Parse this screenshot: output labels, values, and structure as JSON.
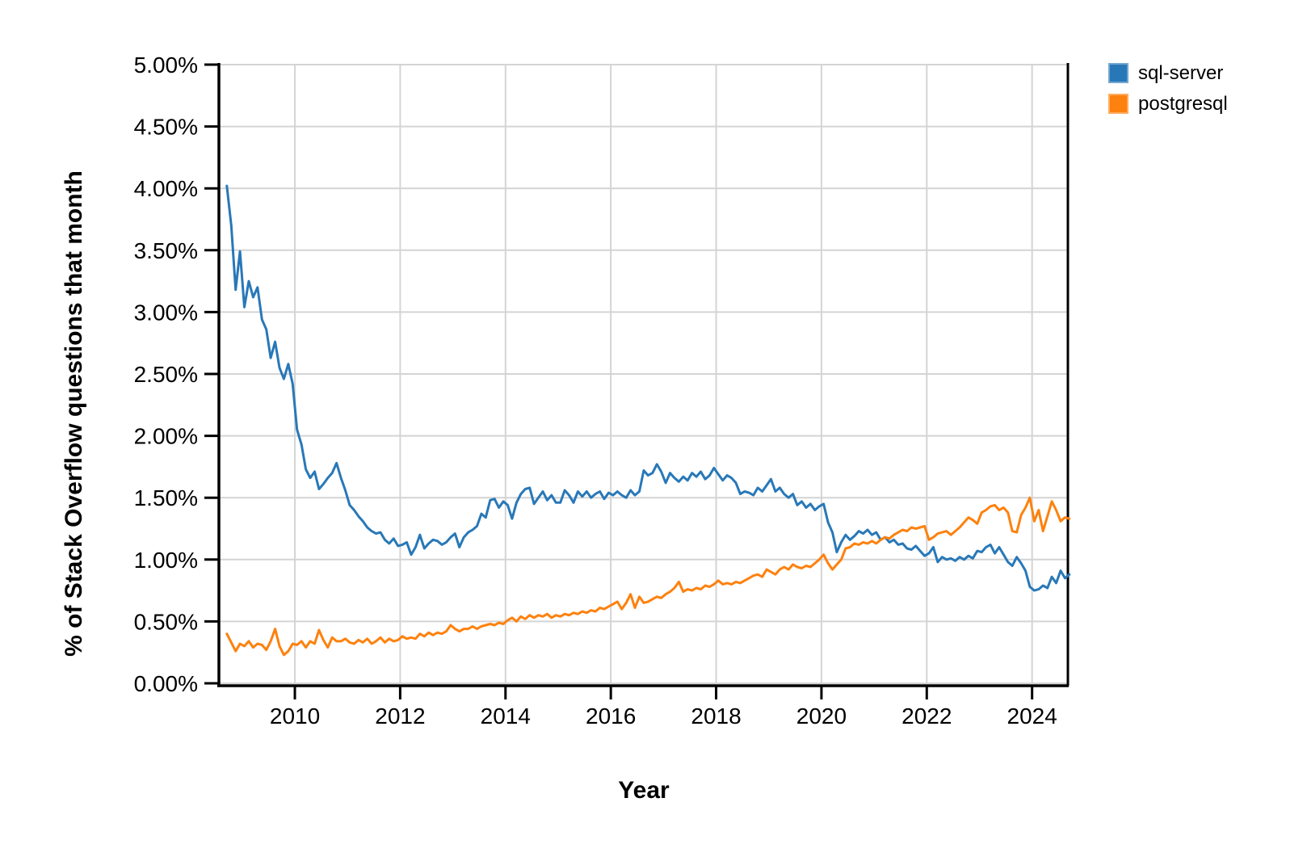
{
  "chart_data": {
    "type": "line",
    "title": "",
    "xlabel": "Year",
    "ylabel": "% of Stack Overflow questions that month",
    "grid": true,
    "legend_position": "top-right",
    "x_axis": {
      "range": [
        2008.573,
        2024.68
      ],
      "tick_years": [
        2010,
        2012,
        2014,
        2016,
        2018,
        2020,
        2022,
        2024
      ],
      "tick_labels": [
        "2010",
        "2012",
        "2014",
        "2016",
        "2018",
        "2020",
        "2022",
        "2024"
      ],
      "series_start_year": 2008.7083,
      "series_step_years": 0.083333
    },
    "y_axis": {
      "range": [
        0,
        5
      ],
      "tick_values": [
        0,
        0.5,
        1,
        1.5,
        2,
        2.5,
        3,
        3.5,
        4,
        4.5,
        5
      ],
      "tick_labels": [
        "0.00%",
        "0.50%",
        "1.00%",
        "1.50%",
        "2.00%",
        "2.50%",
        "3.00%",
        "3.50%",
        "4.00%",
        "4.50%",
        "5.00%"
      ]
    },
    "series": [
      {
        "name": "sql-server",
        "color": "#2878b8",
        "unit": "percent of Stack Overflow questions",
        "values": [
          4.02,
          3.7,
          3.18,
          3.49,
          3.04,
          3.25,
          3.12,
          3.2,
          2.94,
          2.86,
          2.63,
          2.76,
          2.55,
          2.46,
          2.58,
          2.42,
          2.05,
          1.93,
          1.73,
          1.66,
          1.71,
          1.57,
          1.61,
          1.66,
          1.7,
          1.78,
          1.66,
          1.56,
          1.44,
          1.4,
          1.35,
          1.31,
          1.26,
          1.23,
          1.21,
          1.22,
          1.16,
          1.13,
          1.17,
          1.11,
          1.12,
          1.14,
          1.04,
          1.1,
          1.2,
          1.09,
          1.13,
          1.16,
          1.15,
          1.12,
          1.14,
          1.18,
          1.21,
          1.1,
          1.18,
          1.22,
          1.24,
          1.27,
          1.37,
          1.34,
          1.48,
          1.49,
          1.42,
          1.47,
          1.44,
          1.33,
          1.46,
          1.53,
          1.57,
          1.58,
          1.45,
          1.5,
          1.55,
          1.48,
          1.52,
          1.46,
          1.46,
          1.56,
          1.52,
          1.46,
          1.55,
          1.51,
          1.55,
          1.5,
          1.53,
          1.55,
          1.49,
          1.54,
          1.52,
          1.55,
          1.52,
          1.5,
          1.56,
          1.52,
          1.55,
          1.72,
          1.68,
          1.7,
          1.77,
          1.71,
          1.62,
          1.7,
          1.66,
          1.63,
          1.67,
          1.64,
          1.7,
          1.67,
          1.71,
          1.65,
          1.68,
          1.74,
          1.69,
          1.64,
          1.68,
          1.66,
          1.62,
          1.53,
          1.55,
          1.54,
          1.52,
          1.58,
          1.55,
          1.6,
          1.65,
          1.55,
          1.58,
          1.53,
          1.5,
          1.53,
          1.44,
          1.47,
          1.42,
          1.45,
          1.4,
          1.43,
          1.45,
          1.3,
          1.22,
          1.06,
          1.14,
          1.2,
          1.16,
          1.19,
          1.23,
          1.21,
          1.24,
          1.2,
          1.22,
          1.16,
          1.18,
          1.14,
          1.16,
          1.12,
          1.13,
          1.09,
          1.08,
          1.11,
          1.07,
          1.03,
          1.05,
          1.1,
          0.98,
          1.02,
          1.0,
          1.01,
          0.99,
          1.02,
          1.0,
          1.03,
          1.01,
          1.07,
          1.06,
          1.1,
          1.12,
          1.05,
          1.1,
          1.04,
          0.98,
          0.95,
          1.02,
          0.97,
          0.91,
          0.78,
          0.75,
          0.76,
          0.79,
          0.77,
          0.86,
          0.81,
          0.91,
          0.85,
          0.88
        ]
      },
      {
        "name": "postgresql",
        "color": "#fd810e",
        "unit": "percent of Stack Overflow questions",
        "values": [
          0.4,
          0.33,
          0.26,
          0.32,
          0.3,
          0.34,
          0.29,
          0.32,
          0.31,
          0.27,
          0.34,
          0.44,
          0.3,
          0.23,
          0.26,
          0.32,
          0.31,
          0.34,
          0.29,
          0.34,
          0.32,
          0.43,
          0.35,
          0.29,
          0.37,
          0.34,
          0.34,
          0.36,
          0.33,
          0.32,
          0.35,
          0.33,
          0.36,
          0.32,
          0.34,
          0.37,
          0.33,
          0.36,
          0.34,
          0.35,
          0.38,
          0.36,
          0.37,
          0.36,
          0.4,
          0.38,
          0.41,
          0.39,
          0.41,
          0.4,
          0.42,
          0.47,
          0.44,
          0.42,
          0.44,
          0.44,
          0.46,
          0.44,
          0.46,
          0.47,
          0.48,
          0.47,
          0.49,
          0.48,
          0.51,
          0.53,
          0.5,
          0.54,
          0.52,
          0.55,
          0.53,
          0.55,
          0.54,
          0.56,
          0.53,
          0.55,
          0.54,
          0.56,
          0.55,
          0.57,
          0.56,
          0.58,
          0.57,
          0.59,
          0.58,
          0.61,
          0.6,
          0.62,
          0.64,
          0.66,
          0.6,
          0.65,
          0.72,
          0.61,
          0.7,
          0.65,
          0.66,
          0.68,
          0.7,
          0.69,
          0.72,
          0.74,
          0.77,
          0.82,
          0.74,
          0.76,
          0.75,
          0.77,
          0.76,
          0.79,
          0.78,
          0.8,
          0.83,
          0.8,
          0.81,
          0.8,
          0.82,
          0.81,
          0.83,
          0.85,
          0.87,
          0.88,
          0.86,
          0.92,
          0.9,
          0.88,
          0.92,
          0.94,
          0.92,
          0.96,
          0.94,
          0.93,
          0.95,
          0.94,
          0.97,
          1.0,
          1.04,
          0.97,
          0.92,
          0.96,
          1.0,
          1.09,
          1.1,
          1.13,
          1.12,
          1.14,
          1.13,
          1.15,
          1.13,
          1.16,
          1.18,
          1.17,
          1.2,
          1.22,
          1.24,
          1.23,
          1.26,
          1.25,
          1.26,
          1.27,
          1.16,
          1.18,
          1.21,
          1.22,
          1.23,
          1.2,
          1.23,
          1.26,
          1.3,
          1.34,
          1.32,
          1.29,
          1.38,
          1.4,
          1.43,
          1.44,
          1.4,
          1.42,
          1.38,
          1.23,
          1.22,
          1.36,
          1.42,
          1.5,
          1.31,
          1.4,
          1.23,
          1.35,
          1.47,
          1.4,
          1.31,
          1.34,
          1.33
        ]
      }
    ]
  },
  "colors": {
    "background": "#ffffff",
    "gridline": "#d4d4d4",
    "axis": "#000000",
    "tick_text": "#000000"
  }
}
